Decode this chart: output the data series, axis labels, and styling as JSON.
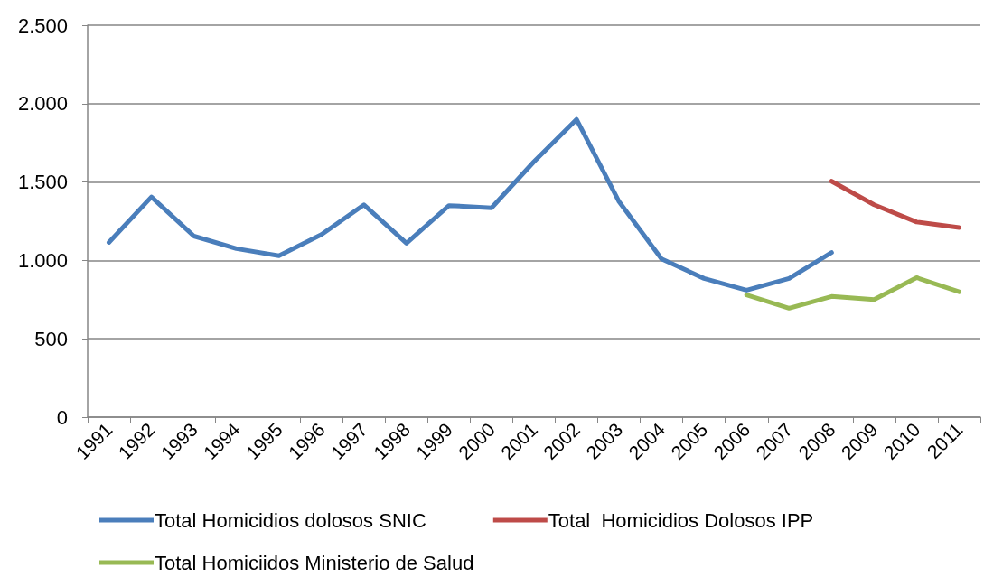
{
  "chart_data": {
    "type": "line",
    "categories": [
      "1991",
      "1992",
      "1993",
      "1994",
      "1995",
      "1996",
      "1997",
      "1998",
      "1999",
      "2000",
      "2001",
      "2002",
      "2003",
      "2004",
      "2005",
      "2006",
      "2007",
      "2008",
      "2009",
      "2010",
      "2011"
    ],
    "series": [
      {
        "name": "Total Homicidios dolosos SNIC",
        "color": "#4a7ebb",
        "values": [
          1115,
          1405,
          1155,
          1075,
          1030,
          1165,
          1355,
          1110,
          1350,
          1335,
          1630,
          1900,
          1375,
          1010,
          885,
          810,
          885,
          1050,
          null,
          null,
          null
        ]
      },
      {
        "name": "Total  Homicidios Dolosos IPP",
        "color": "#be4b48",
        "values": [
          null,
          null,
          null,
          null,
          null,
          null,
          null,
          null,
          null,
          null,
          null,
          null,
          null,
          null,
          null,
          null,
          null,
          1505,
          1355,
          1245,
          1210
        ]
      },
      {
        "name": "Total Homiciidos Ministerio de Salud",
        "color": "#98b954",
        "values": [
          null,
          null,
          null,
          null,
          null,
          null,
          null,
          null,
          null,
          null,
          null,
          null,
          null,
          null,
          null,
          780,
          695,
          770,
          750,
          890,
          800
        ]
      }
    ],
    "ylim": [
      0,
      2500
    ],
    "yticks": [
      0,
      500,
      {
        "value": 1000,
        "label": "1.000"
      },
      {
        "value": 1500,
        "label": "1.500"
      },
      {
        "value": 2000,
        "label": "2.000"
      },
      {
        "value": 2500,
        "label": "2.500"
      }
    ],
    "grid": "y",
    "legend": "bottom",
    "marker": "none",
    "line_style": "solid"
  }
}
